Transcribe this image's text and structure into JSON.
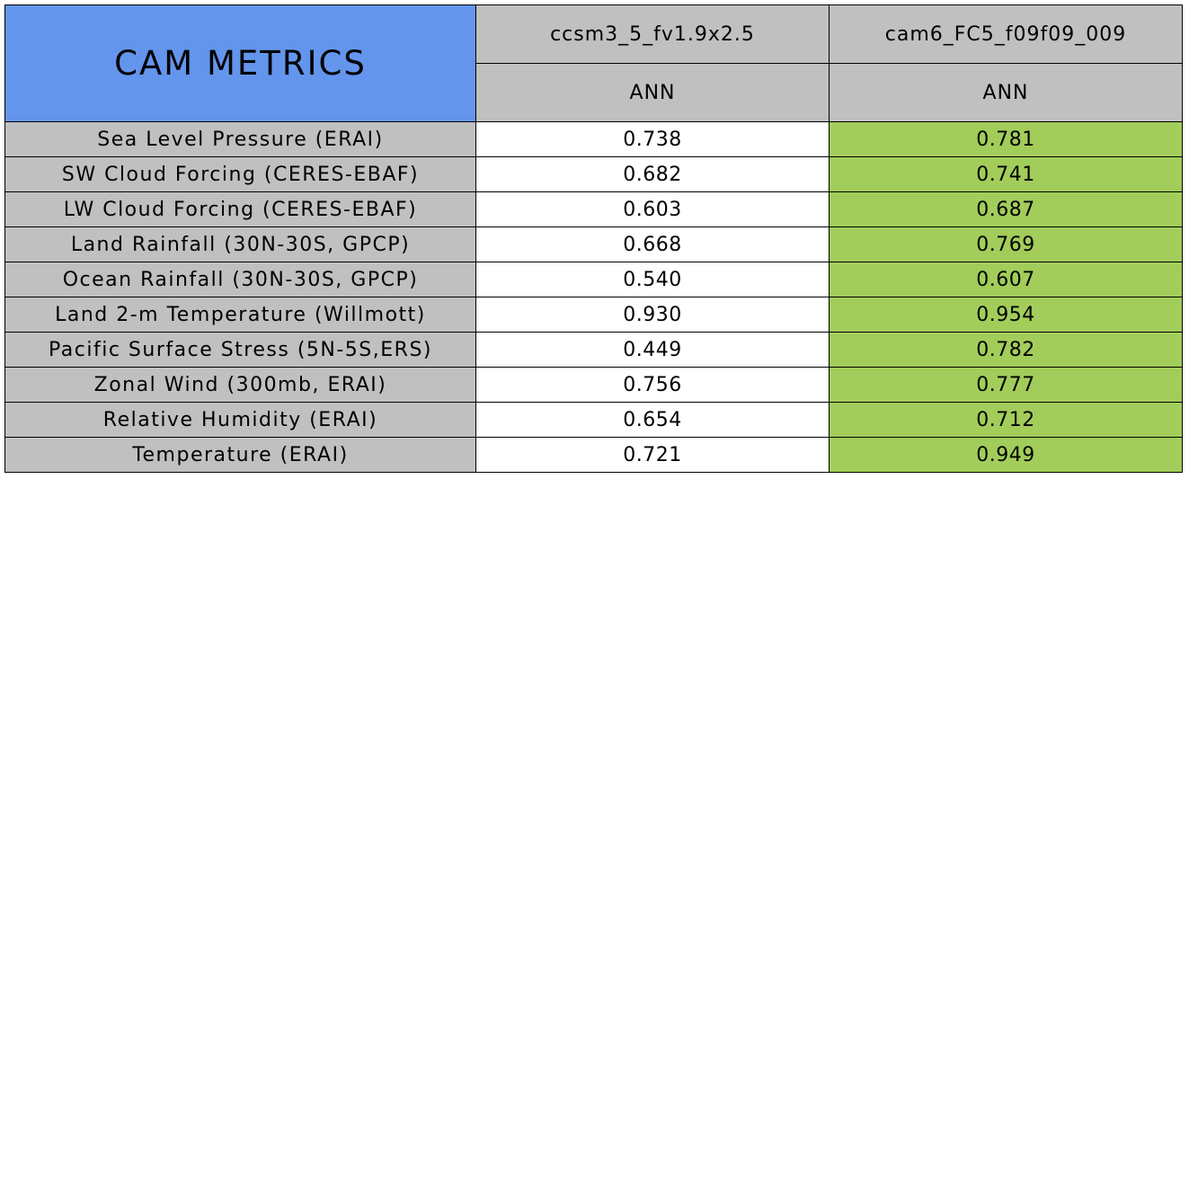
{
  "colors": {
    "title_bg": "#6495ED",
    "header_bg": "#C0C0C0",
    "label_bg": "#C0C0C0",
    "plain_bg": "#FFFFFF",
    "better_bg": "#A2CD5A"
  },
  "chart_data": {
    "type": "table",
    "title": "CAM METRICS",
    "columns": [
      {
        "case": "ccsm3_5_fv1.9x2.5",
        "season": "ANN"
      },
      {
        "case": "cam6_FC5_f09f09_009",
        "season": "ANN"
      }
    ],
    "rows": [
      {
        "metric": "Sea Level Pressure (ERAI)",
        "values": [
          "0.738",
          "0.781"
        ],
        "highlight": [
          false,
          true
        ]
      },
      {
        "metric": "SW Cloud Forcing (CERES-EBAF)",
        "values": [
          "0.682",
          "0.741"
        ],
        "highlight": [
          false,
          true
        ]
      },
      {
        "metric": "LW Cloud Forcing (CERES-EBAF)",
        "values": [
          "0.603",
          "0.687"
        ],
        "highlight": [
          false,
          true
        ]
      },
      {
        "metric": "Land Rainfall (30N-30S, GPCP)",
        "values": [
          "0.668",
          "0.769"
        ],
        "highlight": [
          false,
          true
        ]
      },
      {
        "metric": "Ocean Rainfall (30N-30S, GPCP)",
        "values": [
          "0.540",
          "0.607"
        ],
        "highlight": [
          false,
          true
        ]
      },
      {
        "metric": "Land 2-m Temperature (Willmott)",
        "values": [
          "0.930",
          "0.954"
        ],
        "highlight": [
          false,
          true
        ]
      },
      {
        "metric": "Pacific Surface Stress (5N-5S,ERS)",
        "values": [
          "0.449",
          "0.782"
        ],
        "highlight": [
          false,
          true
        ]
      },
      {
        "metric": "Zonal Wind (300mb, ERAI)",
        "values": [
          "0.756",
          "0.777"
        ],
        "highlight": [
          false,
          true
        ]
      },
      {
        "metric": "Relative Humidity (ERAI)",
        "values": [
          "0.654",
          "0.712"
        ],
        "highlight": [
          false,
          true
        ]
      },
      {
        "metric": "Temperature (ERAI)",
        "values": [
          "0.721",
          "0.949"
        ],
        "highlight": [
          false,
          true
        ]
      }
    ]
  }
}
